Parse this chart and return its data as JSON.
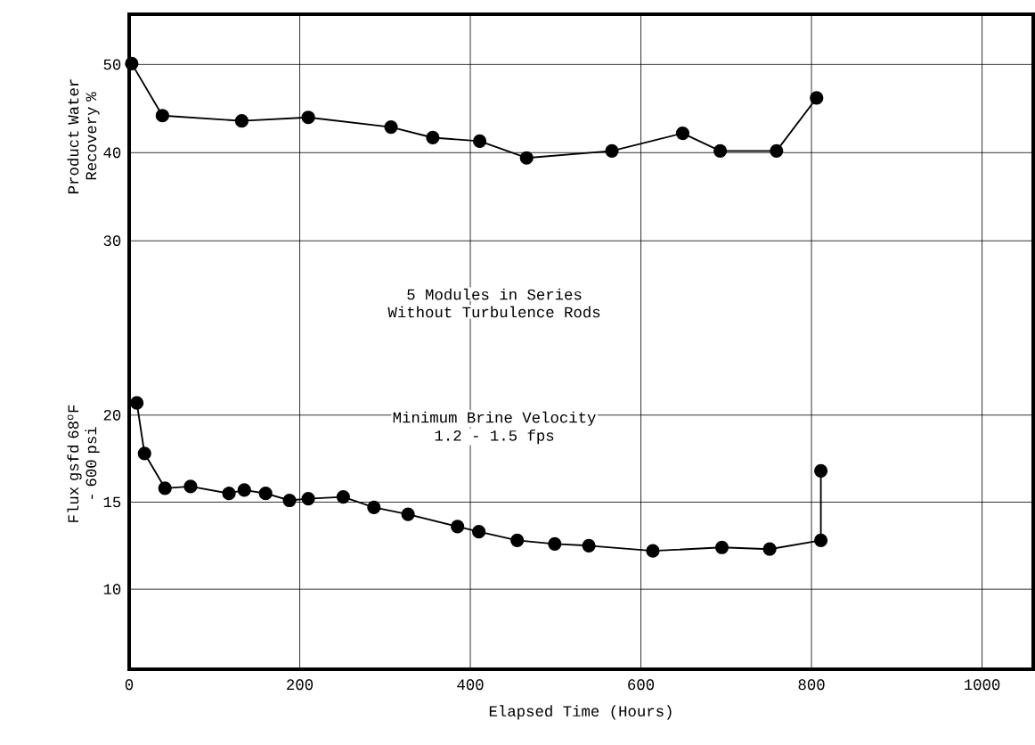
{
  "chart_data": [
    {
      "type": "line",
      "ylabel": "Product Water Recovery %",
      "marker": "circle",
      "line_style": "solid",
      "grid": true,
      "tick_labels": "y",
      "x": [
        3,
        39,
        132,
        210,
        307,
        356,
        411,
        466,
        566,
        649,
        693,
        759,
        806
      ],
      "series": [
        {
          "color": "#000000",
          "values": [
            50.1,
            44.2,
            43.6,
            44.0,
            42.9,
            41.7,
            41.3,
            39.4,
            40.2,
            42.2,
            40.2,
            40.2,
            46.2
          ]
        }
      ],
      "xlim": [
        0,
        1060
      ],
      "xticks": [
        0,
        200,
        400,
        600,
        800,
        1000
      ],
      "ylim": [
        28,
        55.7
      ],
      "yticks": [
        30,
        40,
        50
      ]
    },
    {
      "type": "line",
      "ylabel": "Flux gsfd 68$^{o}$F - 600 psi",
      "xlabel": "Elapsed Time (Hours)",
      "marker": "circle",
      "line_style": "solid",
      "grid": true,
      "annotations": [
        "5 Modules in Series",
        "Without Turbulence Rods",
        "Minimum Brine Velocity",
        "1.2 - 1.5 fps"
      ],
      "x": [
        9,
        18,
        42,
        72,
        117,
        135,
        160,
        188,
        210,
        251,
        287,
        327,
        385,
        410,
        455,
        499,
        539,
        614,
        695,
        751,
        811,
        811
      ],
      "series": [
        {
          "color": "#000000",
          "values": [
            20.7,
            17.8,
            15.8,
            15.9,
            15.5,
            15.7,
            15.5,
            15.1,
            15.2,
            15.3,
            14.7,
            14.3,
            13.6,
            13.3,
            12.8,
            12.6,
            12.5,
            12.2,
            12.4,
            12.3,
            12.8,
            16.8
          ]
        }
      ],
      "xlim": [
        0,
        1060
      ],
      "xticks": [
        0,
        200,
        400,
        600,
        800,
        1000
      ],
      "ylim": [
        5.4,
        29
      ],
      "yticks": [
        10,
        15,
        20
      ]
    }
  ]
}
